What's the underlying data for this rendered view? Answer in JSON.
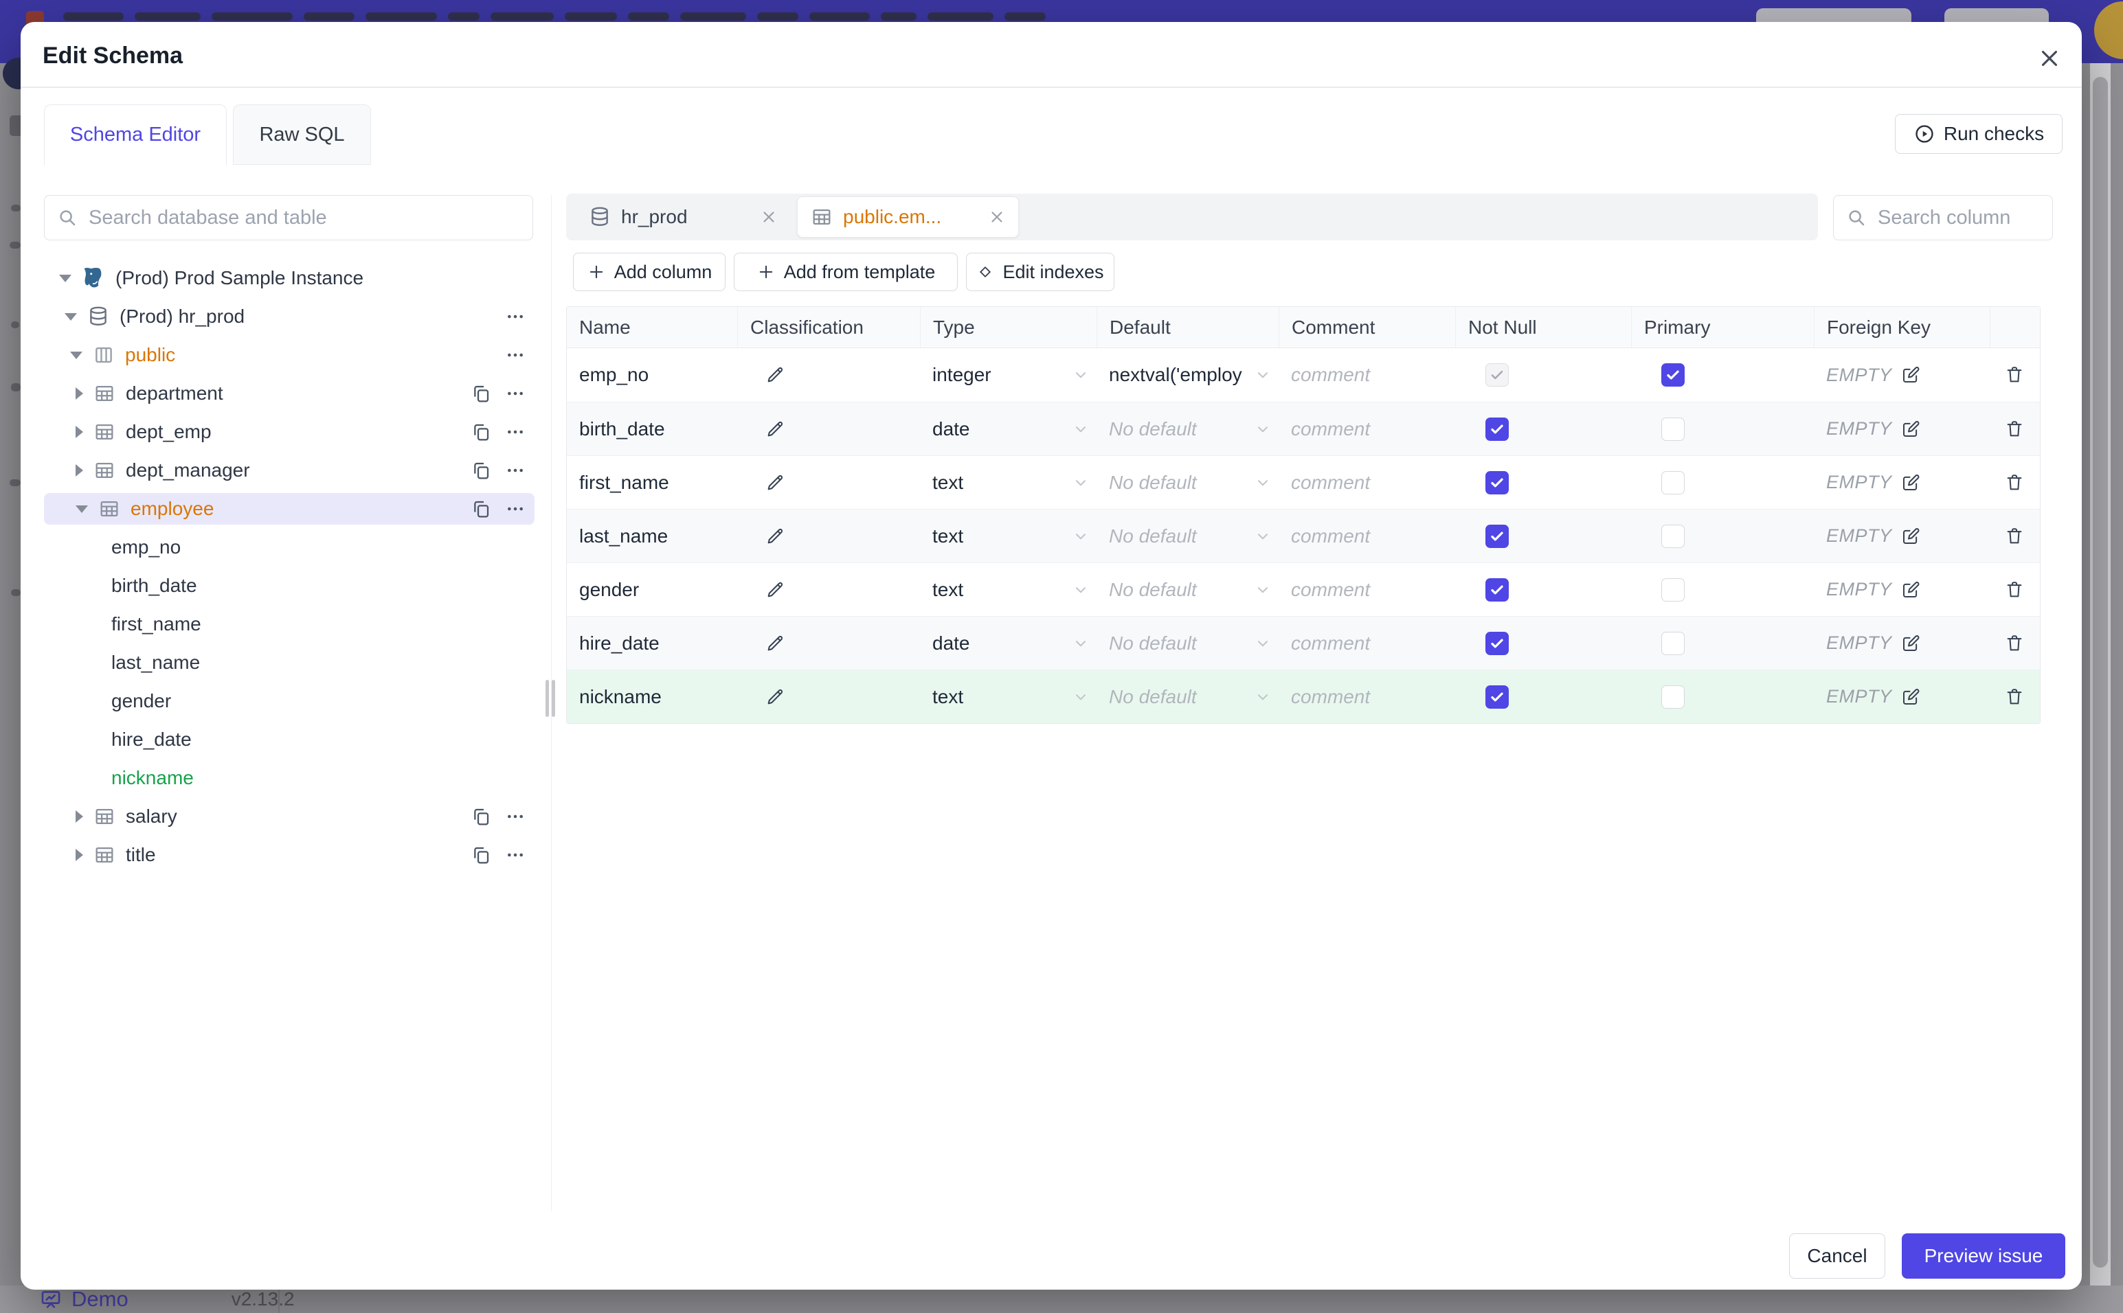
{
  "backdrop": {
    "demo_label": "Demo",
    "version": "v2.13.2"
  },
  "modal": {
    "title": "Edit Schema",
    "run_checks": "Run checks",
    "tabs": [
      {
        "label": "Schema Editor",
        "active": true
      },
      {
        "label": "Raw SQL",
        "active": false
      }
    ],
    "sidebar": {
      "search_placeholder": "Search database and table",
      "tree": [
        {
          "level": 0,
          "caret": "down",
          "icon": "postgres",
          "label": "(Prod) Prod Sample Instance"
        },
        {
          "level": 1,
          "caret": "down",
          "icon": "database",
          "label": "(Prod) hr_prod",
          "more": true
        },
        {
          "level": 2,
          "caret": "down",
          "icon": "schema",
          "label": "public",
          "color": "amber",
          "more": true
        },
        {
          "level": 3,
          "caret": "right",
          "icon": "table",
          "label": "department",
          "copy": true,
          "more": true
        },
        {
          "level": 3,
          "caret": "right",
          "icon": "table",
          "label": "dept_emp",
          "copy": true,
          "more": true
        },
        {
          "level": 3,
          "caret": "right",
          "icon": "table",
          "label": "dept_manager",
          "copy": true,
          "more": true
        },
        {
          "level": 3,
          "caret": "down",
          "icon": "table",
          "label": "employee",
          "color": "amber",
          "selected": true,
          "copy": true,
          "more": true
        },
        {
          "level": 4,
          "label": "emp_no"
        },
        {
          "level": 4,
          "label": "birth_date"
        },
        {
          "level": 4,
          "label": "first_name"
        },
        {
          "level": 4,
          "label": "last_name"
        },
        {
          "level": 4,
          "label": "gender"
        },
        {
          "level": 4,
          "label": "hire_date"
        },
        {
          "level": 4,
          "label": "nickname",
          "color": "green"
        },
        {
          "level": 3,
          "caret": "right",
          "icon": "table",
          "label": "salary",
          "copy": true,
          "more": true
        },
        {
          "level": 3,
          "caret": "right",
          "icon": "table",
          "label": "title",
          "copy": true,
          "more": true
        }
      ]
    },
    "editor": {
      "chips": [
        {
          "label": "hr_prod",
          "icon": "database",
          "active": false
        },
        {
          "label": "public.em...",
          "icon": "table",
          "active": true
        }
      ],
      "column_search_placeholder": "Search column",
      "toolbar": [
        {
          "icon": "plus",
          "label": "Add column"
        },
        {
          "icon": "plus",
          "label": "Add from template"
        },
        {
          "icon": "diamond",
          "label": "Edit indexes"
        }
      ],
      "table": {
        "headers": [
          "Name",
          "Classification",
          "Type",
          "Default",
          "Comment",
          "Not Null",
          "Primary",
          "Foreign Key"
        ],
        "comment_placeholder": "comment",
        "no_default_placeholder": "No default",
        "foreign_key_empty": "EMPTY",
        "rows": [
          {
            "name": "emp_no",
            "type": "integer",
            "default": "nextval('employ",
            "has_default": true,
            "not_null": "disabled",
            "primary": "checked",
            "row_state": "plain"
          },
          {
            "name": "birth_date",
            "type": "date",
            "default": "",
            "has_default": false,
            "not_null": "checked",
            "primary": "unchecked",
            "row_state": "alt"
          },
          {
            "name": "first_name",
            "type": "text",
            "default": "",
            "has_default": false,
            "not_null": "checked",
            "primary": "unchecked",
            "row_state": "plain"
          },
          {
            "name": "last_name",
            "type": "text",
            "default": "",
            "has_default": false,
            "not_null": "checked",
            "primary": "unchecked",
            "row_state": "alt"
          },
          {
            "name": "gender",
            "type": "text",
            "default": "",
            "has_default": false,
            "not_null": "checked",
            "primary": "unchecked",
            "row_state": "plain"
          },
          {
            "name": "hire_date",
            "type": "date",
            "default": "",
            "has_default": false,
            "not_null": "checked",
            "primary": "unchecked",
            "row_state": "alt"
          },
          {
            "name": "nickname",
            "type": "text",
            "default": "",
            "has_default": false,
            "not_null": "checked",
            "primary": "unchecked",
            "row_state": "new"
          }
        ]
      }
    },
    "footer": {
      "cancel": "Cancel",
      "primary": "Preview issue"
    },
    "colors": {
      "accent": "#4f46e5",
      "modified": "#d97706",
      "created": "#16a34a"
    }
  }
}
